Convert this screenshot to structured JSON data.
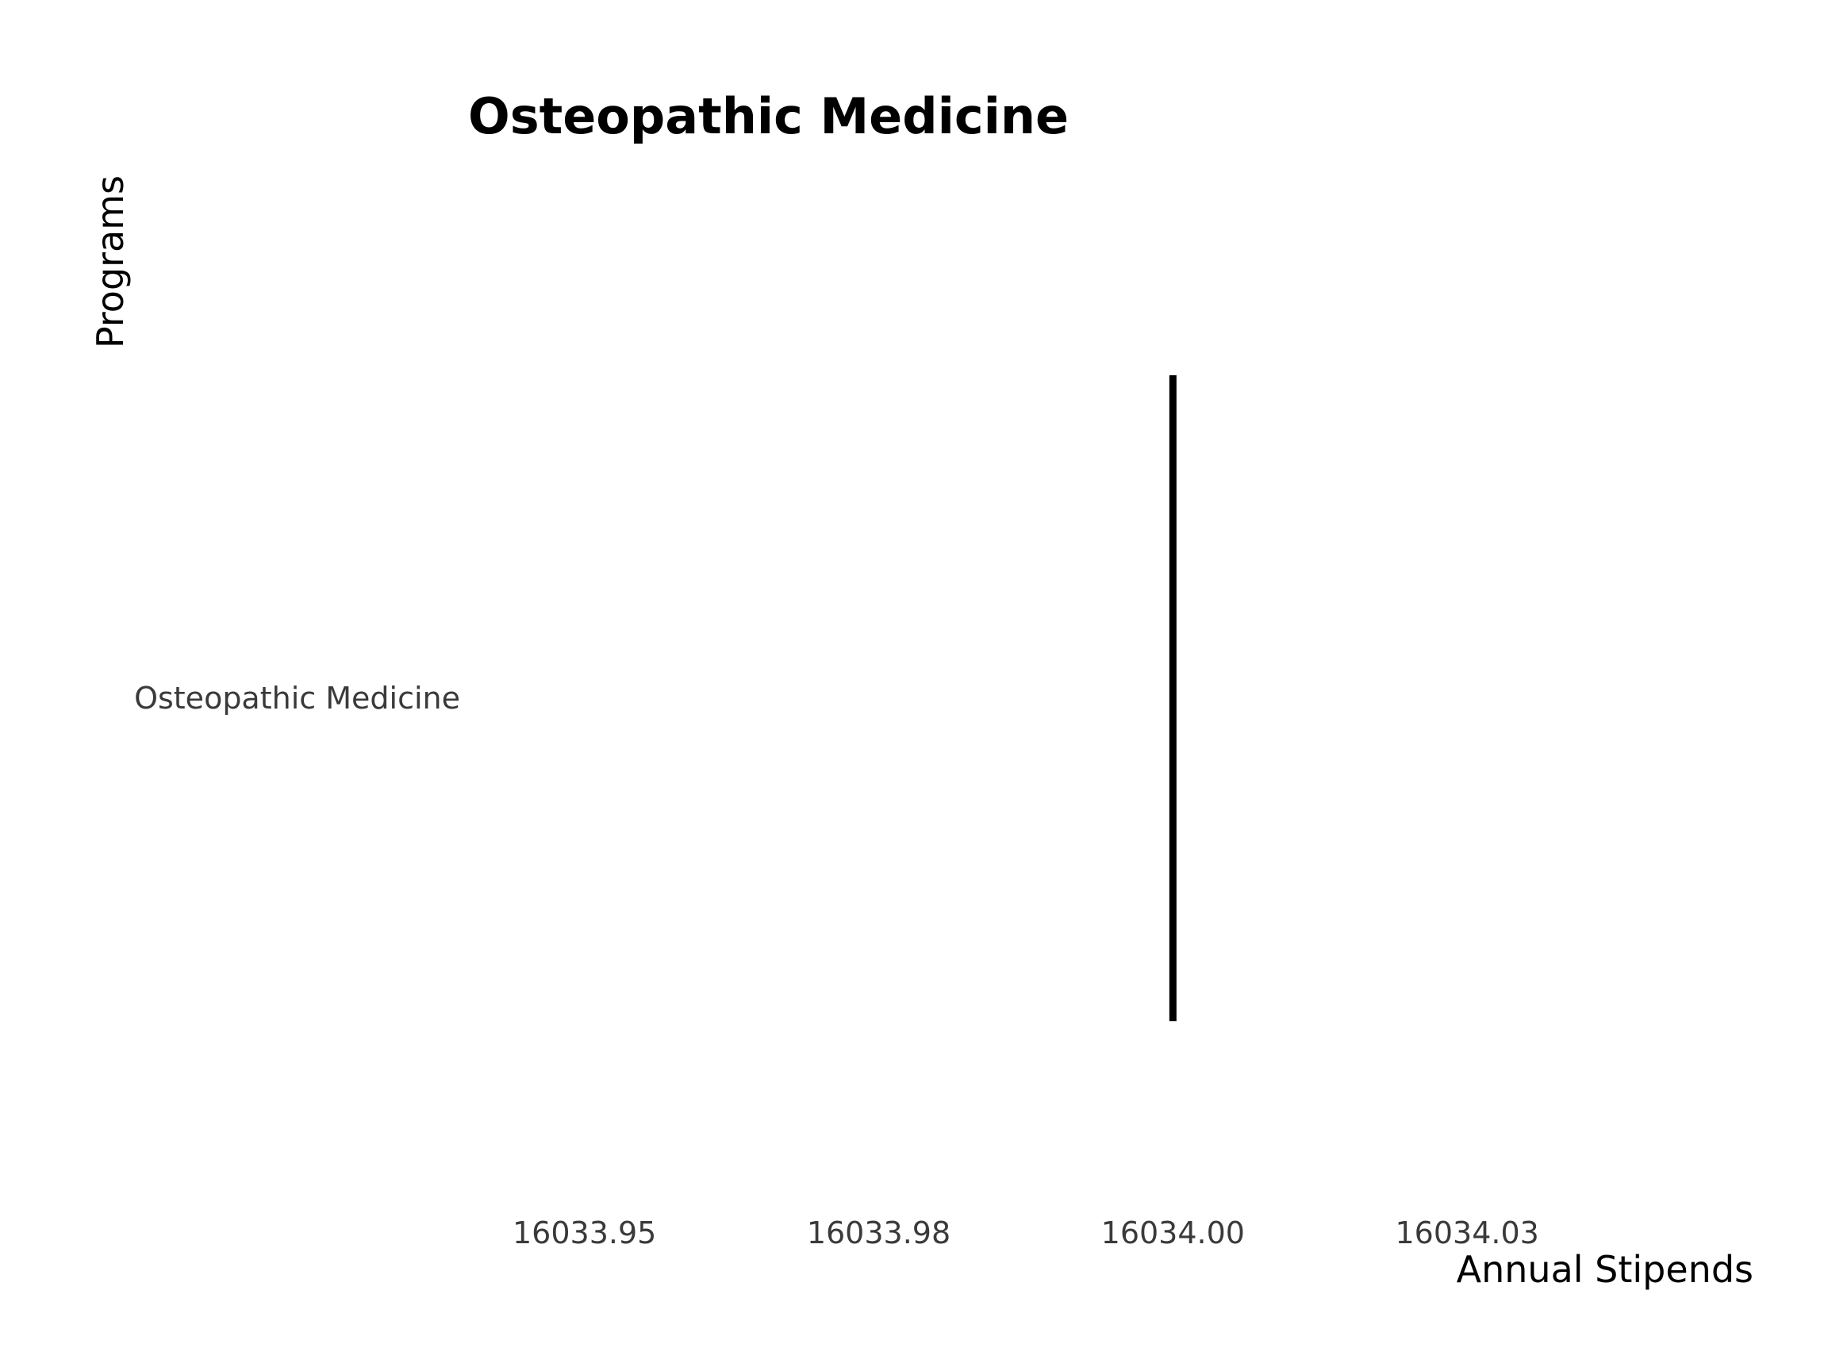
{
  "chart_data": {
    "type": "bar",
    "orientation": "horizontal",
    "title": "Osteopathic Medicine",
    "xlabel": "Annual Stipends",
    "ylabel": "Programs",
    "categories": [
      "Osteopathic Medicine"
    ],
    "values": [
      16034.0
    ],
    "xlim": [
      16033.93,
      16034.05
    ],
    "x_ticks": [
      16033.95,
      16033.975,
      16034.0,
      16034.025
    ],
    "x_tick_labels": [
      "16033.95",
      "16033.98",
      "16034.00",
      "16034.03"
    ],
    "grid": false,
    "legend": "none",
    "colors": {
      "mark": "#000000",
      "tick_text": "#3a3a3a",
      "title_text": "#000000"
    }
  }
}
